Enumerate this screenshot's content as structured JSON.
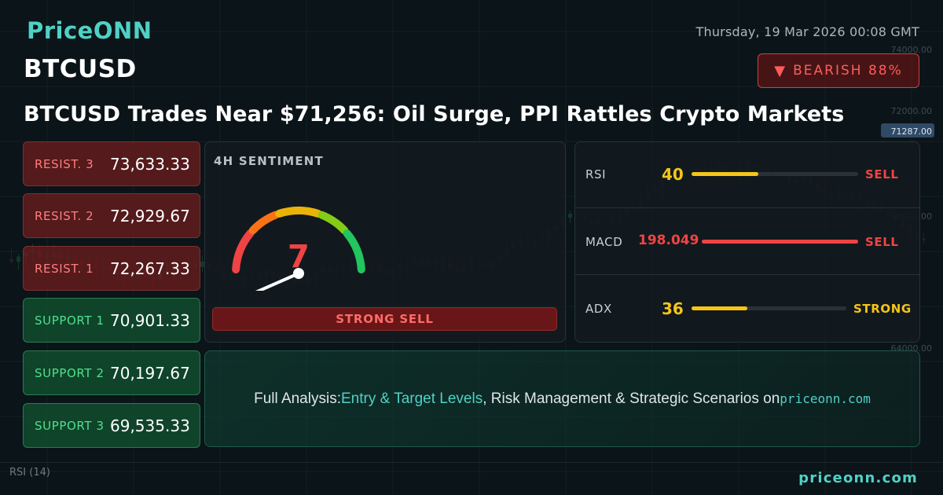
{
  "brand": {
    "logo_text": "PriceONN",
    "footer_site": "priceonn.com",
    "accent": "#4fd1c5"
  },
  "header": {
    "timestamp": "Thursday, 19 Mar 2026 00:08 GMT",
    "symbol": "BTCUSD",
    "bias": {
      "label": "BEARISH 88%",
      "icon": "triangle-down-icon",
      "color": "#ff5c5c"
    },
    "headline": "BTCUSD Trades Near $71,256: Oil Surge, PPI Rattles Crypto Markets"
  },
  "levels": [
    {
      "label": "RESIST. 3",
      "value": "73,633.33",
      "kind": "resistance"
    },
    {
      "label": "RESIST. 2",
      "value": "72,929.67",
      "kind": "resistance"
    },
    {
      "label": "RESIST. 1",
      "value": "72,267.33",
      "kind": "resistance"
    },
    {
      "label": "SUPPORT 1",
      "value": "70,901.33",
      "kind": "support"
    },
    {
      "label": "SUPPORT 2",
      "value": "70,197.67",
      "kind": "support"
    },
    {
      "label": "SUPPORT 3",
      "value": "69,535.33",
      "kind": "support"
    }
  ],
  "sentiment": {
    "title": "4H SENTIMENT",
    "value": "7",
    "gauge_level": 0.07,
    "verdict": "STRONG SELL"
  },
  "indicators": [
    {
      "name": "RSI",
      "value": "40",
      "signal": "SELL",
      "level": 0.4,
      "color": "#f5c518",
      "signal_color": "#ef4444"
    },
    {
      "name": "MACD",
      "value": "198.049",
      "signal": "SELL",
      "level": 1.0,
      "color": "#ef4444",
      "signal_color": "#ef4444"
    },
    {
      "name": "ADX",
      "value": "36",
      "signal": "STRONG",
      "level": 0.36,
      "color": "#f5c518",
      "signal_color": "#f5c518"
    }
  ],
  "cta": {
    "prefix": "Full Analysis: ",
    "highlight": "Entry & Target Levels",
    "middle": ", Risk Management & Strategic Scenarios on ",
    "site": "priceonn.com"
  },
  "background_chart": {
    "price_labels": [
      "74000.00",
      "72000.00",
      "71287.00",
      "66000.00",
      "64000.00"
    ],
    "rsi_label": "RSI",
    "rsi_period": "(14)"
  }
}
